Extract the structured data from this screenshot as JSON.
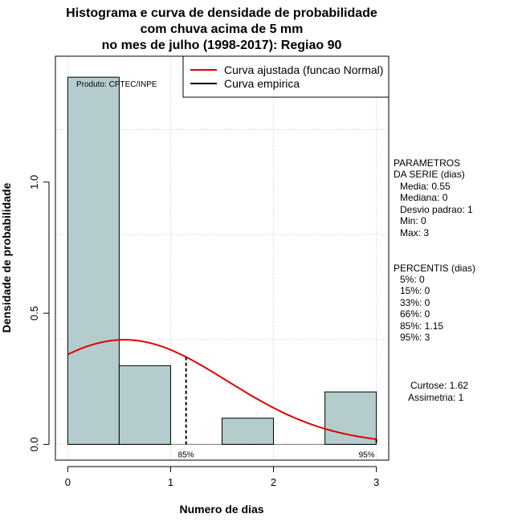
{
  "chart_data": {
    "type": "bar",
    "title_lines": [
      "Histograma e curva de densidade de probabilidade",
      "com chuva acima de 5 mm",
      "no mes de julho (1998-2017): Regiao 90"
    ],
    "xlabel": "Numero de dias",
    "ylabel": "Densidade de probabilidade",
    "xlim": [
      -0.12,
      3.12
    ],
    "ylim": [
      -0.06,
      1.48
    ],
    "x_ticks": [
      0,
      1,
      2,
      3
    ],
    "y_ticks": [
      0.0,
      0.5,
      1.0
    ],
    "x_tick_labels": [
      "0",
      "1",
      "2",
      "3"
    ],
    "y_tick_labels": [
      "0.0",
      "0.5",
      "1.0"
    ],
    "grid": true,
    "bins": [
      {
        "start": 0.0,
        "end": 0.5,
        "density": 1.4
      },
      {
        "start": 0.5,
        "end": 1.0,
        "density": 0.3
      },
      {
        "start": 1.0,
        "end": 1.5,
        "density": 0.0
      },
      {
        "start": 1.5,
        "end": 2.0,
        "density": 0.1
      },
      {
        "start": 2.0,
        "end": 2.5,
        "density": 0.0
      },
      {
        "start": 2.5,
        "end": 3.0,
        "density": 0.2
      }
    ],
    "bar_color": "#b4cccc",
    "normal_fit": {
      "name": "Curva ajustada (funcao Normal)",
      "mean": 0.55,
      "sd": 1.0,
      "color": "#e00000"
    },
    "empirical": {
      "name": "Curva empirica",
      "color": "#000000"
    },
    "percentile_markers": [
      {
        "x": 1.15,
        "label": "85%"
      },
      {
        "x": 3.0,
        "label": "95%"
      }
    ],
    "credit": "Produto: CPTEC/INPE",
    "legend_position": "top-right"
  },
  "side_panel": {
    "parametros_title_1": "PARAMETROS",
    "parametros_title_2": "DA SERIE (dias)",
    "media": "Media: 0.55",
    "mediana": "Mediana: 0",
    "desvio": "Desvio padrao: 1",
    "min": "Min: 0",
    "max": "Max: 3",
    "percentis_title": "PERCENTIS (dias)",
    "p5": "5%: 0",
    "p15": "15%: 0",
    "p33": "33%: 0",
    "p66": "66%: 0",
    "p85": "85%: 1.15",
    "p95": "95%: 3",
    "curtose": "Curtose: 1.62",
    "assimetria": "Assimetria: 1"
  }
}
